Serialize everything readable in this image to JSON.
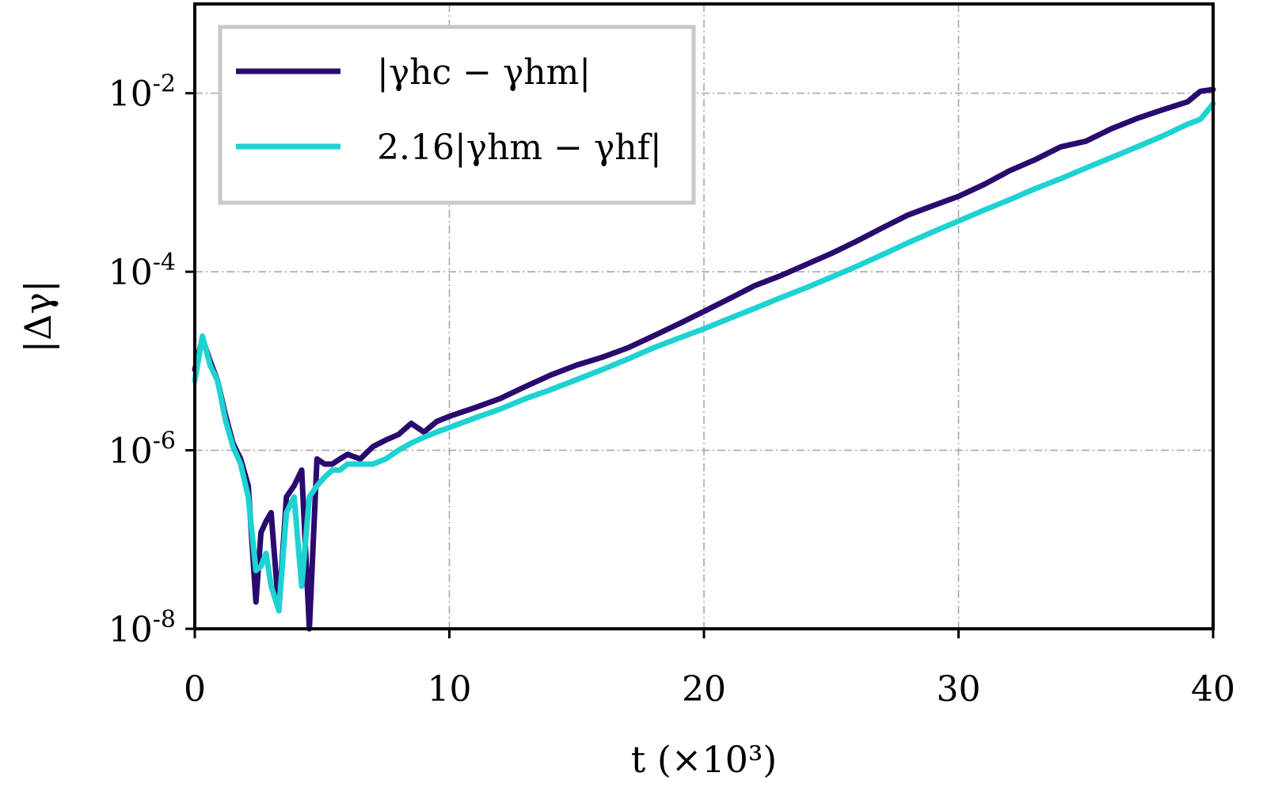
{
  "chart_data": {
    "type": "line",
    "title": "",
    "xlabel": "t (×10³)",
    "ylabel": "|Δγ|",
    "xlim": [
      0,
      40
    ],
    "ylim": [
      1e-08,
      0.1
    ],
    "yscale": "log",
    "grid": true,
    "legend_position": "top-left",
    "x_ticks": [
      0,
      10,
      20,
      30,
      40
    ],
    "x_tick_labels": [
      "0",
      "10",
      "20",
      "30",
      "40"
    ],
    "y_ticks": [
      1e-08,
      1e-06,
      0.0001,
      0.01
    ],
    "y_tick_labels": [
      {
        "base": "10",
        "exp": "-8"
      },
      {
        "base": "10",
        "exp": "-6"
      },
      {
        "base": "10",
        "exp": "-4"
      },
      {
        "base": "10",
        "exp": "-2"
      }
    ],
    "series": [
      {
        "name": "|γhc − γhm|",
        "color": "#2a0a6e",
        "x": [
          0.0,
          0.3,
          0.6,
          0.9,
          1.2,
          1.5,
          1.8,
          2.1,
          2.4,
          2.6,
          2.8,
          3.0,
          3.3,
          3.6,
          3.9,
          4.2,
          4.5,
          4.8,
          5.1,
          5.4,
          5.7,
          6.0,
          6.5,
          7.0,
          7.5,
          8.0,
          8.5,
          9.0,
          9.5,
          10.0,
          11.0,
          12.0,
          13.0,
          14.0,
          15.0,
          16.0,
          17.0,
          18.0,
          19.0,
          20.0,
          21.0,
          22.0,
          23.0,
          24.0,
          25.0,
          26.0,
          27.0,
          28.0,
          29.0,
          30.0,
          31.0,
          32.0,
          33.0,
          34.0,
          35.0,
          36.0,
          37.0,
          38.0,
          39.0,
          39.5,
          40.0
        ],
        "y": [
          8e-06,
          1.8e-05,
          1e-05,
          6e-06,
          2.5e-06,
          1.2e-06,
          8e-07,
          4e-07,
          2e-08,
          1.2e-07,
          1.6e-07,
          2e-07,
          1.6e-08,
          3e-07,
          4e-07,
          6e-07,
          1e-08,
          8e-07,
          7e-07,
          7e-07,
          8e-07,
          9e-07,
          8e-07,
          1.1e-06,
          1.3e-06,
          1.5e-06,
          2e-06,
          1.6e-06,
          2.1e-06,
          2.4e-06,
          3e-06,
          3.8e-06,
          5.2e-06,
          7e-06,
          9e-06,
          1.1e-05,
          1.4e-05,
          1.9e-05,
          2.6e-05,
          3.6e-05,
          5e-05,
          7e-05,
          9e-05,
          0.00012,
          0.00016,
          0.00022,
          0.00031,
          0.00043,
          0.00055,
          0.0007,
          0.00095,
          0.00135,
          0.0018,
          0.0025,
          0.0029,
          0.004,
          0.0052,
          0.0065,
          0.008,
          0.0105,
          0.011
        ]
      },
      {
        "name": "2.16|γhm − γhf|",
        "color": "#1ed2d2",
        "x": [
          0.0,
          0.3,
          0.6,
          0.9,
          1.2,
          1.5,
          1.8,
          2.1,
          2.4,
          2.6,
          2.8,
          3.0,
          3.3,
          3.6,
          3.9,
          4.2,
          4.5,
          4.8,
          5.1,
          5.4,
          5.7,
          6.0,
          6.5,
          7.0,
          7.5,
          8.0,
          8.5,
          9.0,
          9.5,
          10.0,
          11.0,
          12.0,
          13.0,
          14.0,
          15.0,
          16.0,
          17.0,
          18.0,
          19.0,
          20.0,
          21.0,
          22.0,
          23.0,
          24.0,
          25.0,
          26.0,
          27.0,
          28.0,
          29.0,
          30.0,
          31.0,
          32.0,
          33.0,
          34.0,
          35.0,
          36.0,
          37.0,
          38.0,
          39.0,
          39.5,
          40.0
        ],
        "y": [
          6e-06,
          1.9e-05,
          9e-06,
          6e-06,
          2.2e-06,
          1.1e-06,
          7e-07,
          3e-07,
          4.5e-08,
          5e-08,
          7e-08,
          3e-08,
          1.6e-08,
          2e-07,
          3e-07,
          3e-08,
          3e-07,
          4e-07,
          5e-07,
          6e-07,
          6e-07,
          7e-07,
          7e-07,
          7e-07,
          8e-07,
          1e-06,
          1.2e-06,
          1.4e-06,
          1.6e-06,
          1.8e-06,
          2.3e-06,
          2.9e-06,
          3.8e-06,
          4.8e-06,
          6.2e-06,
          8e-06,
          1.05e-05,
          1.4e-05,
          1.8e-05,
          2.3e-05,
          3e-05,
          3.9e-05,
          5.1e-05,
          6.6e-05,
          8.7e-05,
          0.000115,
          0.000155,
          0.00021,
          0.00028,
          0.00037,
          0.00049,
          0.00064,
          0.00085,
          0.0011,
          0.00145,
          0.0019,
          0.0025,
          0.0033,
          0.0045,
          0.0051,
          0.0076
        ]
      }
    ]
  }
}
